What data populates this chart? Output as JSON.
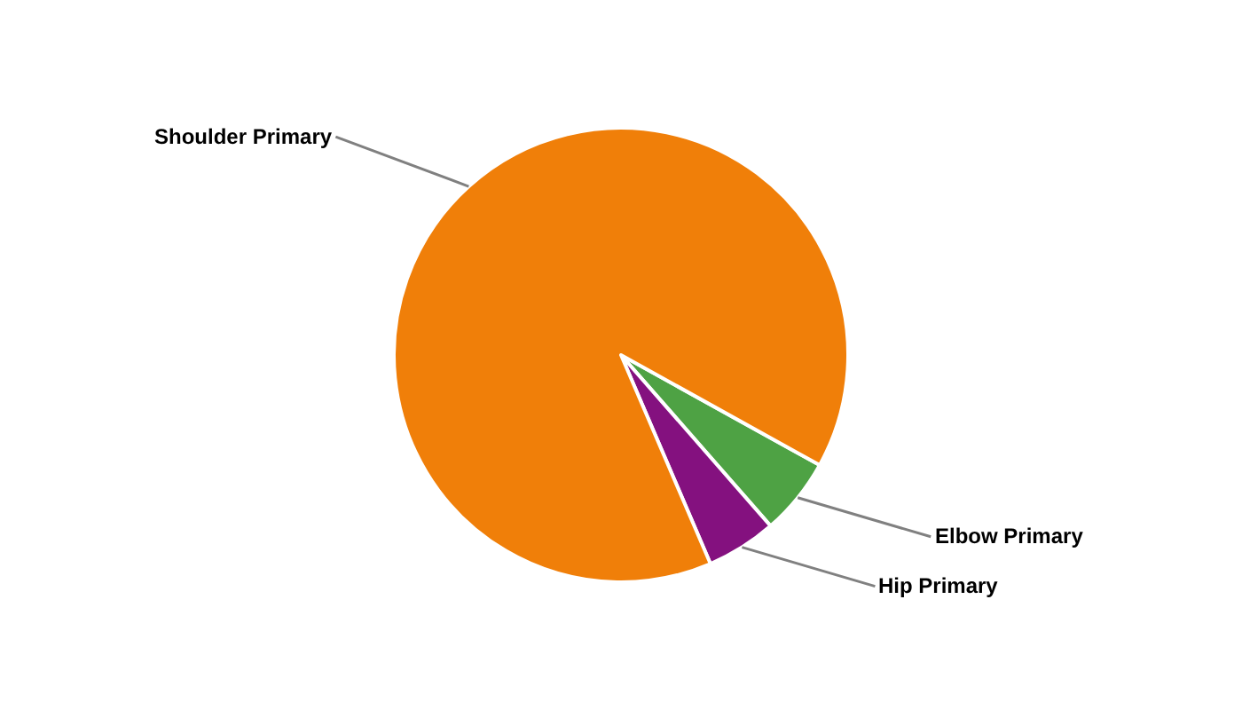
{
  "chart_data": {
    "type": "pie",
    "categories": [
      "Elbow Primary",
      "Hip Primary",
      "Shoulder Primary"
    ],
    "values": [
      5.5,
      5,
      89.5
    ],
    "colors": [
      "#4ea244",
      "#84117f",
      "#f07f09"
    ]
  }
}
